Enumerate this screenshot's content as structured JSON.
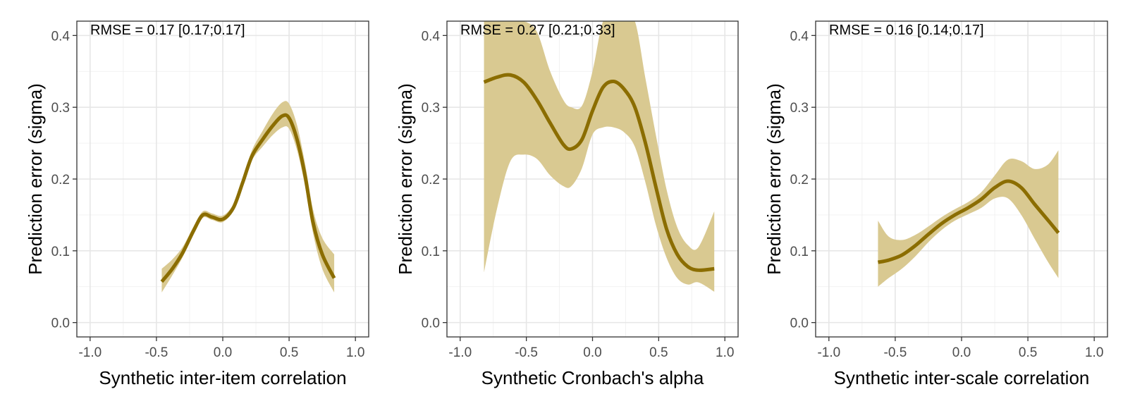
{
  "colors": {
    "line": "#8b6d00",
    "ribbon": "#d9c991",
    "grid": "#e6e6e6",
    "border": "#333333"
  },
  "chart_data": [
    {
      "type": "line",
      "annotation": "RMSE = 0.17 [0.17;0.17]",
      "xlabel": "Synthetic inter-item correlation",
      "ylabel": "Prediction error (sigma)",
      "xlim": [
        -1.0,
        1.0
      ],
      "ylim": [
        0.0,
        0.4
      ],
      "x_ticks": [
        "-1.0",
        "-0.5",
        "0.0",
        "0.5",
        "1.0"
      ],
      "y_ticks": [
        "0.0",
        "0.1",
        "0.2",
        "0.3",
        "0.4"
      ],
      "grid": true,
      "x": [
        -0.46,
        -0.38,
        -0.3,
        -0.22,
        -0.15,
        -0.08,
        0.0,
        0.08,
        0.15,
        0.22,
        0.3,
        0.38,
        0.45,
        0.5,
        0.56,
        0.62,
        0.68,
        0.75,
        0.84
      ],
      "y": [
        0.057,
        0.075,
        0.098,
        0.128,
        0.15,
        0.147,
        0.144,
        0.16,
        0.195,
        0.232,
        0.255,
        0.275,
        0.288,
        0.285,
        0.255,
        0.205,
        0.14,
        0.095,
        0.062
      ],
      "lower": [
        0.042,
        0.066,
        0.092,
        0.124,
        0.146,
        0.143,
        0.14,
        0.156,
        0.191,
        0.226,
        0.245,
        0.262,
        0.272,
        0.27,
        0.24,
        0.19,
        0.125,
        0.075,
        0.042
      ],
      "upper": [
        0.075,
        0.088,
        0.106,
        0.134,
        0.155,
        0.152,
        0.149,
        0.165,
        0.2,
        0.24,
        0.267,
        0.292,
        0.307,
        0.305,
        0.275,
        0.222,
        0.158,
        0.118,
        0.095
      ]
    },
    {
      "type": "line",
      "annotation": "RMSE = 0.27 [0.21;0.33]",
      "xlabel": "Synthetic Cronbach's alpha",
      "ylabel": "Prediction error (sigma)",
      "xlim": [
        -1.0,
        1.0
      ],
      "ylim": [
        0.0,
        0.4
      ],
      "x_ticks": [
        "-1.0",
        "-0.5",
        "0.0",
        "0.5",
        "1.0"
      ],
      "y_ticks": [
        "0.0",
        "0.1",
        "0.2",
        "0.3",
        "0.4"
      ],
      "grid": true,
      "x": [
        -0.82,
        -0.72,
        -0.62,
        -0.52,
        -0.42,
        -0.32,
        -0.22,
        -0.16,
        -0.08,
        0.0,
        0.08,
        0.16,
        0.24,
        0.32,
        0.4,
        0.48,
        0.56,
        0.64,
        0.72,
        0.8,
        0.92
      ],
      "y": [
        0.335,
        0.342,
        0.345,
        0.335,
        0.31,
        0.278,
        0.248,
        0.242,
        0.255,
        0.295,
        0.328,
        0.336,
        0.325,
        0.3,
        0.25,
        0.188,
        0.13,
        0.095,
        0.078,
        0.073,
        0.075
      ],
      "lower": [
        0.07,
        0.16,
        0.225,
        0.234,
        0.228,
        0.205,
        0.19,
        0.19,
        0.215,
        0.262,
        0.272,
        0.272,
        0.265,
        0.245,
        0.195,
        0.135,
        0.09,
        0.062,
        0.053,
        0.056,
        0.043
      ],
      "upper": [
        0.42,
        0.42,
        0.42,
        0.42,
        0.405,
        0.35,
        0.31,
        0.3,
        0.302,
        0.35,
        0.42,
        0.42,
        0.42,
        0.42,
        0.34,
        0.26,
        0.185,
        0.133,
        0.108,
        0.105,
        0.155
      ]
    },
    {
      "type": "line",
      "annotation": "RMSE = 0.16 [0.14;0.17]",
      "xlabel": "Synthetic inter-scale correlation",
      "ylabel": "Prediction error (sigma)",
      "xlim": [
        -1.0,
        1.0
      ],
      "ylim": [
        0.0,
        0.4
      ],
      "x_ticks": [
        "-1.0",
        "-0.5",
        "0.0",
        "0.5",
        "1.0"
      ],
      "y_ticks": [
        "0.0",
        "0.1",
        "0.2",
        "0.3",
        "0.4"
      ],
      "grid": true,
      "x": [
        -0.63,
        -0.55,
        -0.45,
        -0.35,
        -0.25,
        -0.15,
        -0.05,
        0.05,
        0.15,
        0.25,
        0.35,
        0.45,
        0.55,
        0.65,
        0.73
      ],
      "y": [
        0.084,
        0.087,
        0.094,
        0.107,
        0.123,
        0.138,
        0.15,
        0.16,
        0.172,
        0.188,
        0.197,
        0.188,
        0.165,
        0.143,
        0.125
      ],
      "lower": [
        0.05,
        0.062,
        0.075,
        0.092,
        0.112,
        0.129,
        0.142,
        0.151,
        0.16,
        0.173,
        0.173,
        0.15,
        0.117,
        0.085,
        0.062
      ],
      "upper": [
        0.142,
        0.12,
        0.115,
        0.122,
        0.134,
        0.147,
        0.158,
        0.168,
        0.182,
        0.205,
        0.227,
        0.225,
        0.214,
        0.22,
        0.24
      ]
    }
  ]
}
